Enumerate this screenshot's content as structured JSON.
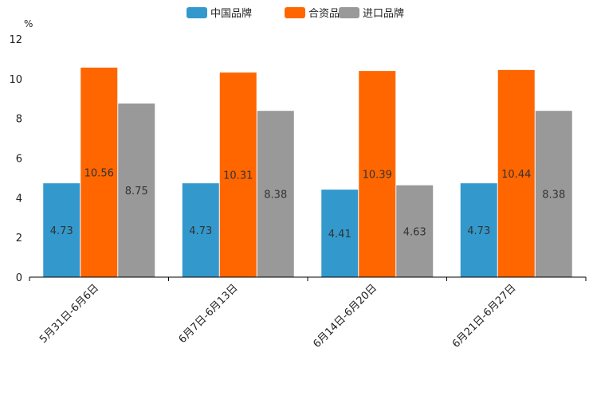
{
  "chart_data": {
    "type": "bar",
    "title": "",
    "xlabel": "",
    "ylabel": "%",
    "ylim": [
      0,
      12
    ],
    "yticks": [
      0,
      2,
      4,
      6,
      8,
      10,
      12
    ],
    "categories": [
      "5月31日-6月6日",
      "6月7日-6月13日",
      "6月14日-6月20日",
      "6月21日-6月27日"
    ],
    "series": [
      {
        "name": "中国品牌",
        "color": "#3399cc",
        "values": [
          4.73,
          4.73,
          4.41,
          4.73
        ]
      },
      {
        "name": "合资品牌",
        "color": "#ff6600",
        "values": [
          10.56,
          10.31,
          10.39,
          10.44
        ]
      },
      {
        "name": "进口品牌",
        "color": "#999999",
        "values": [
          8.75,
          8.38,
          4.63,
          8.38
        ]
      }
    ],
    "legend_position": "top-center",
    "grid": false
  }
}
